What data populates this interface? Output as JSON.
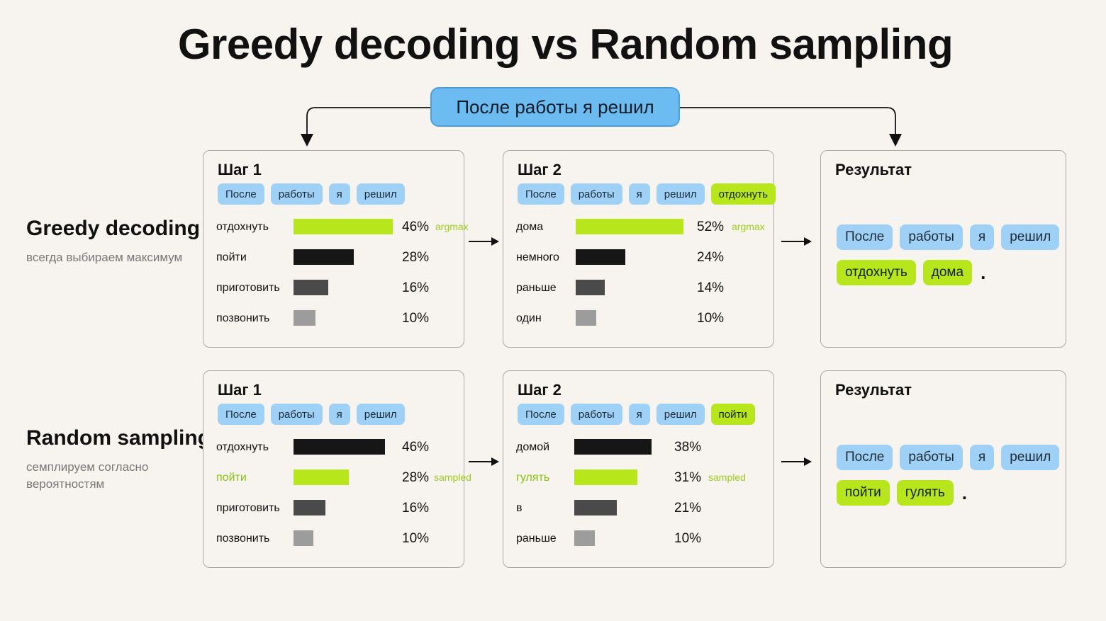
{
  "title": "Greedy decoding vs Random sampling",
  "prompt": "После работы я решил",
  "colors": {
    "green": "#b8e61c",
    "blue": "#9fd0f6",
    "dark": "#161616",
    "mid": "#4a4a4a",
    "light": "#9c9c9c"
  },
  "rows": [
    {
      "name": "Greedy decoding",
      "desc": "всегда выбираем максимум",
      "step1": {
        "title": "Шаг 1",
        "chips": [
          {
            "text": "После",
            "hl": false
          },
          {
            "text": "работы",
            "hl": false
          },
          {
            "text": "я",
            "hl": false
          },
          {
            "text": "решил",
            "hl": false
          }
        ],
        "items": [
          {
            "label": "отдохнуть",
            "pct": "46%",
            "value": 46,
            "color": "green",
            "tag": "argmax",
            "label_hl": false
          },
          {
            "label": "пойти",
            "pct": "28%",
            "value": 28,
            "color": "dark",
            "tag": "",
            "label_hl": false
          },
          {
            "label": "приготовить",
            "pct": "16%",
            "value": 16,
            "color": "mid",
            "tag": "",
            "label_hl": false
          },
          {
            "label": "позвонить",
            "pct": "10%",
            "value": 10,
            "color": "light",
            "tag": "",
            "label_hl": false
          }
        ]
      },
      "step2": {
        "title": "Шаг 2",
        "chips": [
          {
            "text": "После",
            "hl": false
          },
          {
            "text": "работы",
            "hl": false
          },
          {
            "text": "я",
            "hl": false
          },
          {
            "text": "решил",
            "hl": false
          },
          {
            "text": "отдохнуть",
            "hl": true
          }
        ],
        "items": [
          {
            "label": "дома",
            "pct": "52%",
            "value": 52,
            "color": "green",
            "tag": "argmax",
            "label_hl": false
          },
          {
            "label": "немного",
            "pct": "24%",
            "value": 24,
            "color": "dark",
            "tag": "",
            "label_hl": false
          },
          {
            "label": "раньше",
            "pct": "14%",
            "value": 14,
            "color": "mid",
            "tag": "",
            "label_hl": false
          },
          {
            "label": "один",
            "pct": "10%",
            "value": 10,
            "color": "light",
            "tag": "",
            "label_hl": false
          }
        ]
      },
      "result": {
        "title": "Результат",
        "chips": [
          {
            "text": "После",
            "hl": false
          },
          {
            "text": "работы",
            "hl": false
          },
          {
            "text": "я",
            "hl": false
          },
          {
            "text": "решил",
            "hl": false
          },
          {
            "text": "отдохнуть",
            "hl": true
          },
          {
            "text": "дома",
            "hl": true
          }
        ],
        "period": "."
      }
    },
    {
      "name": "Random sampling",
      "desc": "семплируем согласно вероятностям",
      "step1": {
        "title": "Шаг 1",
        "chips": [
          {
            "text": "После",
            "hl": false
          },
          {
            "text": "работы",
            "hl": false
          },
          {
            "text": "я",
            "hl": false
          },
          {
            "text": "решил",
            "hl": false
          }
        ],
        "items": [
          {
            "label": "отдохнуть",
            "pct": "46%",
            "value": 46,
            "color": "dark",
            "tag": "",
            "label_hl": false
          },
          {
            "label": "пойти",
            "pct": "28%",
            "value": 28,
            "color": "green",
            "tag": "sampled",
            "label_hl": true
          },
          {
            "label": "приготовить",
            "pct": "16%",
            "value": 16,
            "color": "mid",
            "tag": "",
            "label_hl": false
          },
          {
            "label": "позвонить",
            "pct": "10%",
            "value": 10,
            "color": "light",
            "tag": "",
            "label_hl": false
          }
        ]
      },
      "step2": {
        "title": "Шаг 2",
        "chips": [
          {
            "text": "После",
            "hl": false
          },
          {
            "text": "работы",
            "hl": false
          },
          {
            "text": "я",
            "hl": false
          },
          {
            "text": "решил",
            "hl": false
          },
          {
            "text": "пойти",
            "hl": true
          }
        ],
        "items": [
          {
            "label": "домой",
            "pct": "38%",
            "value": 38,
            "color": "dark",
            "tag": "",
            "label_hl": false
          },
          {
            "label": "гулять",
            "pct": "31%",
            "value": 31,
            "color": "green",
            "tag": "sampled",
            "label_hl": true
          },
          {
            "label": "в",
            "pct": "21%",
            "value": 21,
            "color": "mid",
            "tag": "",
            "label_hl": false
          },
          {
            "label": "раньше",
            "pct": "10%",
            "value": 10,
            "color": "light",
            "tag": "",
            "label_hl": false
          }
        ]
      },
      "result": {
        "title": "Результат",
        "chips": [
          {
            "text": "После",
            "hl": false
          },
          {
            "text": "работы",
            "hl": false
          },
          {
            "text": "я",
            "hl": false
          },
          {
            "text": "решил",
            "hl": false
          },
          {
            "text": "пойти",
            "hl": true
          },
          {
            "text": "гулять",
            "hl": true
          }
        ],
        "period": "."
      }
    }
  ]
}
